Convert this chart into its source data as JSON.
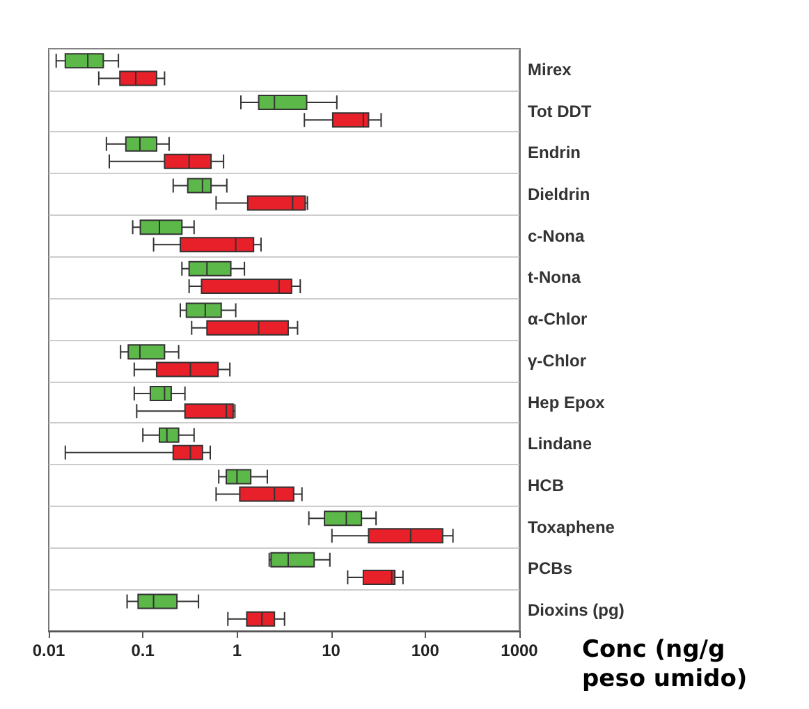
{
  "chart_data": {
    "type": "box",
    "orientation": "horizontal",
    "xlabel": "Conc (ng/g peso umido)",
    "categories": [
      "Mirex",
      "Tot DDT",
      "Endrin",
      "Dieldrin",
      "c-Nona",
      "t-Nona",
      "α-Chlor",
      "γ-Chlor",
      "Hep Epox",
      "Lindane",
      "HCB",
      "Toxaphene",
      "PCBs",
      "Dioxins (pg)"
    ],
    "log": "x",
    "xlim": [
      0.01,
      1000
    ],
    "xticks": [
      0.01,
      0.1,
      1,
      10,
      100,
      1000
    ],
    "grid": "y",
    "series": [
      {
        "color": "#5cb848",
        "boxes": [
          {
            "low": 0.012,
            "q1": 0.015,
            "median": 0.026,
            "q3": 0.038,
            "high": 0.055
          },
          {
            "low": 1.1,
            "q1": 1.7,
            "median": 2.5,
            "q3": 5.5,
            "high": 11.5
          },
          {
            "low": 0.041,
            "q1": 0.066,
            "median": 0.093,
            "q3": 0.14,
            "high": 0.19
          },
          {
            "low": 0.21,
            "q1": 0.3,
            "median": 0.43,
            "q3": 0.53,
            "high": 0.78
          },
          {
            "low": 0.078,
            "q1": 0.094,
            "median": 0.15,
            "q3": 0.26,
            "high": 0.35
          },
          {
            "low": 0.26,
            "q1": 0.31,
            "median": 0.48,
            "q3": 0.86,
            "high": 1.2
          },
          {
            "low": 0.25,
            "q1": 0.29,
            "median": 0.46,
            "q3": 0.68,
            "high": 0.97
          },
          {
            "low": 0.058,
            "q1": 0.07,
            "median": 0.093,
            "q3": 0.17,
            "high": 0.24
          },
          {
            "low": 0.081,
            "q1": 0.12,
            "median": 0.17,
            "q3": 0.2,
            "high": 0.28
          },
          {
            "low": 0.1,
            "q1": 0.15,
            "median": 0.18,
            "q3": 0.24,
            "high": 0.35
          },
          {
            "low": 0.64,
            "q1": 0.77,
            "median": 1.0,
            "q3": 1.4,
            "high": 2.1
          },
          {
            "low": 5.8,
            "q1": 8.5,
            "median": 14.5,
            "q3": 21,
            "high": 30
          },
          {
            "low": 2.2,
            "q1": 2.3,
            "median": 3.5,
            "q3": 6.6,
            "high": 9.7
          },
          {
            "low": 0.068,
            "q1": 0.089,
            "median": 0.13,
            "q3": 0.23,
            "high": 0.39
          }
        ]
      },
      {
        "color": "#e8202a",
        "boxes": [
          {
            "low": 0.034,
            "q1": 0.057,
            "median": 0.084,
            "q3": 0.14,
            "high": 0.17
          },
          {
            "low": 5.2,
            "q1": 10.4,
            "median": 22,
            "q3": 25,
            "high": 34
          },
          {
            "low": 0.044,
            "q1": 0.17,
            "median": 0.31,
            "q3": 0.53,
            "high": 0.72
          },
          {
            "low": 0.6,
            "q1": 1.3,
            "median": 3.9,
            "q3": 5.3,
            "high": 5.6
          },
          {
            "low": 0.13,
            "q1": 0.25,
            "median": 0.97,
            "q3": 1.5,
            "high": 1.8
          },
          {
            "low": 0.31,
            "q1": 0.42,
            "median": 2.8,
            "q3": 3.8,
            "high": 4.7
          },
          {
            "low": 0.33,
            "q1": 0.48,
            "median": 1.7,
            "q3": 3.5,
            "high": 4.4
          },
          {
            "low": 0.081,
            "q1": 0.14,
            "median": 0.32,
            "q3": 0.63,
            "high": 0.84
          },
          {
            "low": 0.086,
            "q1": 0.28,
            "median": 0.77,
            "q3": 0.91,
            "high": 0.95
          },
          {
            "low": 0.015,
            "q1": 0.21,
            "median": 0.32,
            "q3": 0.43,
            "high": 0.52
          },
          {
            "low": 0.6,
            "q1": 1.07,
            "median": 2.5,
            "q3": 4.0,
            "high": 4.9
          },
          {
            "low": 10.2,
            "q1": 25,
            "median": 70,
            "q3": 153,
            "high": 197
          },
          {
            "low": 15,
            "q1": 22,
            "median": 44,
            "q3": 47.5,
            "high": 58
          },
          {
            "low": 0.8,
            "q1": 1.27,
            "median": 1.84,
            "q3": 2.5,
            "high": 3.2
          }
        ]
      }
    ]
  }
}
